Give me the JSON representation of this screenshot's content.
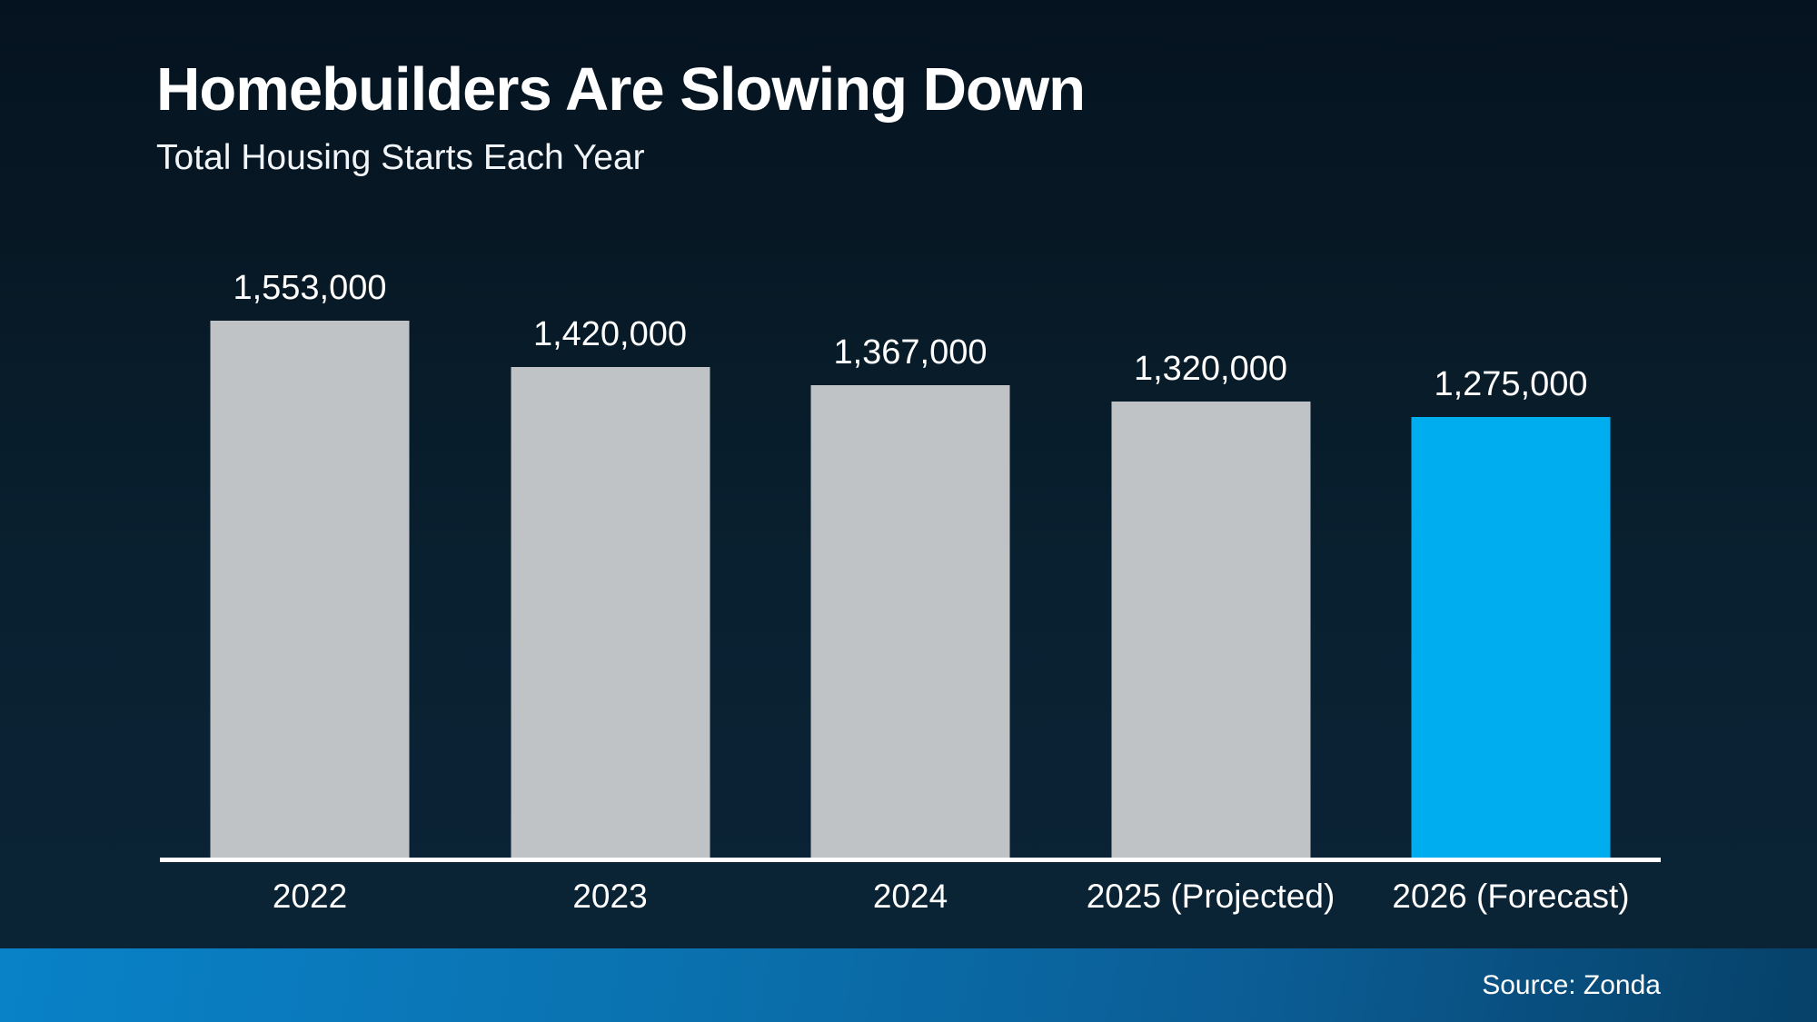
{
  "header": {
    "title": "Homebuilders Are Slowing Down",
    "subtitle": "Total Housing Starts Each Year"
  },
  "footer": {
    "source": "Source: Zonda"
  },
  "colors": {
    "background_top": "#051320",
    "background_bottom": "#0a2335",
    "bar_default": "#bfc3c6",
    "bar_highlight": "#00aeef",
    "axis_line": "#ffffff",
    "footer_left": "#0982c8",
    "footer_right": "#064168",
    "text": "#ffffff"
  },
  "chart_data": {
    "type": "bar",
    "title": "Homebuilders Are Slowing Down",
    "subtitle": "Total Housing Starts Each Year",
    "categories": [
      "2022",
      "2023",
      "2024",
      "2025 (Projected)",
      "2026 (Forecast)"
    ],
    "values": [
      1553000,
      1420000,
      1367000,
      1320000,
      1275000
    ],
    "value_labels": [
      "1,553,000",
      "1,420,000",
      "1,367,000",
      "1,320,000",
      "1,275,000"
    ],
    "highlight_index": 4,
    "xlabel": "",
    "ylabel": "",
    "ylim": [
      0,
      1553000
    ],
    "grid": false,
    "legend": "none",
    "source": "Source: Zonda"
  }
}
